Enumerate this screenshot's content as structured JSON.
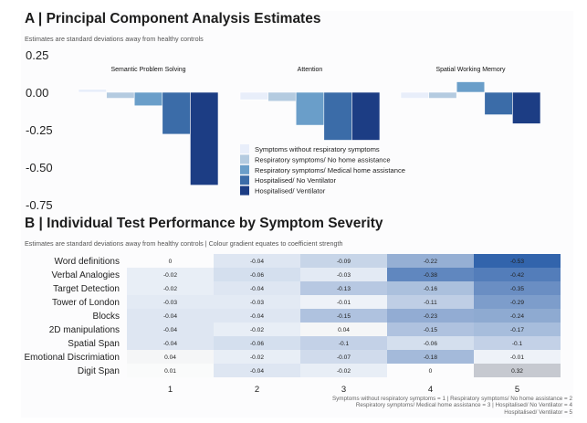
{
  "chart_data": [
    {
      "type": "bar",
      "title": "A | Principal Component Analysis Estimates",
      "subtitle": "Estimates are standard deviations away from healthy controls",
      "xlabel": "",
      "ylabel": "",
      "ylim": [
        -0.75,
        0.25
      ],
      "yticks": [
        "0.25",
        "0.00",
        "-0.25",
        "-0.50",
        "-0.75"
      ],
      "ytick_values": [
        0.25,
        0,
        -0.25,
        -0.5,
        -0.75
      ],
      "grid": false,
      "legend_position": "inside-bottom-center",
      "categories": [
        "Semantic Problem Solving",
        "Attention",
        "Spatial Working Memory"
      ],
      "series": [
        {
          "name": "Symptoms without respiratory symptoms",
          "color": "#e8eefa",
          "values": [
            0.02,
            -0.05,
            -0.04
          ]
        },
        {
          "name": "Respiratory symptoms/ No home assistance",
          "color": "#b4cbe0",
          "values": [
            -0.04,
            -0.06,
            -0.04
          ]
        },
        {
          "name": "Respiratory symptoms/ Medical home assistance",
          "color": "#6a9ec9",
          "values": [
            -0.09,
            -0.22,
            0.07
          ]
        },
        {
          "name": "Hospitalised/ No Ventilator",
          "color": "#3b6ca8",
          "values": [
            -0.28,
            -0.32,
            -0.15
          ]
        },
        {
          "name": "Hospitalised/ Ventilator",
          "color": "#1c3d84",
          "values": [
            -0.62,
            -0.32,
            -0.21
          ]
        }
      ]
    },
    {
      "type": "heatmap",
      "title": "B | Individual Test Performance by Symptom Severity",
      "subtitle": "Estimates are standard deviations away from healthy controls | Colour gradient equates to coefficient strength",
      "x": [
        "1",
        "2",
        "3",
        "4",
        "5"
      ],
      "rows": [
        "Word definitions",
        "Verbal Analogies",
        "Target Detection",
        "Tower of London",
        "Blocks",
        "2D manipulations",
        "Spatial Span",
        "Emotional Discrimiation",
        "Digit Span"
      ],
      "values": [
        [
          0,
          -0.04,
          -0.09,
          -0.22,
          -0.53
        ],
        [
          -0.02,
          -0.06,
          -0.03,
          -0.38,
          -0.42
        ],
        [
          -0.02,
          -0.04,
          -0.13,
          -0.16,
          -0.35
        ],
        [
          -0.03,
          -0.03,
          -0.01,
          -0.11,
          -0.29
        ],
        [
          -0.04,
          -0.04,
          -0.15,
          -0.23,
          -0.24
        ],
        [
          -0.04,
          -0.02,
          0.04,
          -0.15,
          -0.17
        ],
        [
          -0.04,
          -0.06,
          -0.1,
          -0.06,
          -0.1
        ],
        [
          0.04,
          -0.02,
          -0.07,
          -0.18,
          -0.01
        ],
        [
          0.01,
          -0.04,
          -0.02,
          0,
          0.32
        ]
      ],
      "labels": [
        [
          "0",
          "-0.04",
          "-0.09",
          "-0.22",
          "-0.53"
        ],
        [
          "-0.02",
          "-0.06",
          "-0.03",
          "-0.38",
          "-0.42"
        ],
        [
          "-0.02",
          "-0.04",
          "-0.13",
          "-0.16",
          "-0.35"
        ],
        [
          "-0.03",
          "-0.03",
          "-0.01",
          "-0.11",
          "-0.29"
        ],
        [
          "-0.04",
          "-0.04",
          "-0.15",
          "-0.23",
          "-0.24"
        ],
        [
          "-0.04",
          "-0.02",
          "0.04",
          "-0.15",
          "-0.17"
        ],
        [
          "-0.04",
          "-0.06",
          "-0.1",
          "-0.06",
          "-0.1"
        ],
        [
          "0.04",
          "-0.02",
          "-0.07",
          "-0.18",
          "-0.01"
        ],
        [
          "0.01",
          "-0.04",
          "-0.02",
          "0",
          "0.32"
        ]
      ],
      "negative_color": "#2a5ea9",
      "positive_color": "#9a9fac",
      "caption_lines": [
        "Symptoms without respiratory symptoms = 1 | Respiratory symptoms/ No home assistance = 2",
        "Respiratory symptoms/ Medical home assistance = 3 | Hospitalised/ No Ventilator = 4",
        "Hospitalised/ Ventilator = 5"
      ]
    }
  ]
}
